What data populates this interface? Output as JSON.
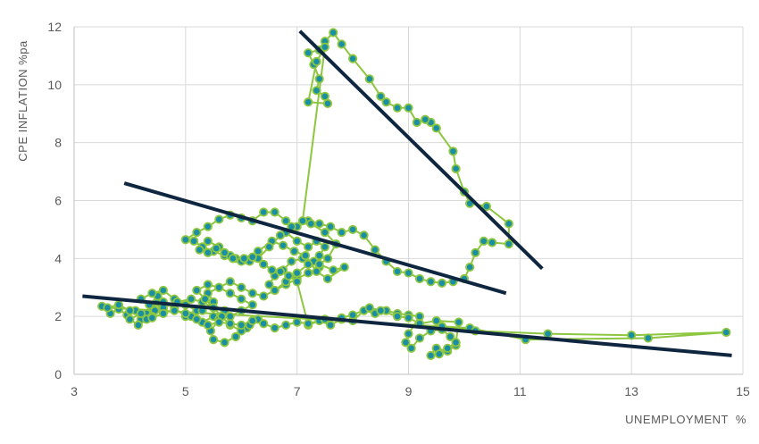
{
  "chart_data": {
    "type": "scatter",
    "title": "",
    "xlabel": "UNEMPLOYMENT  %",
    "ylabel": "CPE INFLATION %pa",
    "xlim": [
      3,
      15
    ],
    "ylim": [
      0,
      12
    ],
    "xticks": [
      3,
      5,
      7,
      9,
      11,
      13,
      15
    ],
    "yticks": [
      0,
      2,
      4,
      6,
      8,
      10,
      12
    ],
    "grid": true,
    "legend": "none",
    "colors": {
      "line": "#8dc63f",
      "marker_fill": "#1a8fa3",
      "marker_edge": "#8dc63f",
      "trend": "#0f2640",
      "grid": "#d9d9d9",
      "axis": "#bfbfbf"
    },
    "series": [
      {
        "points": [
          [
            3.5,
            2.35
          ],
          [
            3.65,
            2.1
          ],
          [
            3.8,
            2.25
          ],
          [
            3.95,
            2.05
          ],
          [
            4.1,
            2.2
          ],
          [
            4.2,
            1.9
          ],
          [
            4.3,
            2.1
          ],
          [
            4.4,
            2.3
          ],
          [
            4.5,
            2.5
          ],
          [
            4.6,
            2.2
          ],
          [
            4.5,
            2.7
          ],
          [
            4.35,
            2.4
          ],
          [
            4.2,
            2.6
          ],
          [
            4.4,
            2.8
          ],
          [
            4.6,
            2.9
          ],
          [
            4.8,
            2.6
          ],
          [
            5.0,
            2.4
          ],
          [
            5.2,
            2.2
          ],
          [
            5.0,
            2.0
          ],
          [
            4.8,
            2.3
          ],
          [
            4.6,
            2.5
          ],
          [
            4.45,
            2.2
          ],
          [
            4.3,
            1.9
          ],
          [
            4.15,
            1.7
          ],
          [
            4.0,
            1.9
          ],
          [
            4.2,
            2.1
          ],
          [
            4.4,
            2.0
          ],
          [
            4.6,
            2.3
          ],
          [
            4.85,
            2.5
          ],
          [
            5.1,
            2.6
          ],
          [
            5.3,
            2.5
          ],
          [
            5.5,
            2.3
          ],
          [
            5.7,
            2.2
          ],
          [
            5.5,
            2.0
          ],
          [
            5.3,
            1.8
          ],
          [
            5.1,
            2.0
          ],
          [
            5.3,
            2.2
          ],
          [
            5.5,
            2.5
          ],
          [
            5.4,
            2.8
          ],
          [
            5.6,
            3.0
          ],
          [
            5.8,
            2.8
          ],
          [
            6.0,
            2.6
          ],
          [
            6.2,
            2.4
          ],
          [
            6.0,
            2.2
          ],
          [
            5.8,
            2.0
          ],
          [
            5.6,
            1.9
          ],
          [
            5.45,
            1.5
          ],
          [
            5.5,
            1.2
          ],
          [
            5.7,
            1.1
          ],
          [
            5.9,
            1.3
          ],
          [
            6.1,
            1.6
          ],
          [
            6.3,
            1.9
          ],
          [
            6.15,
            1.7
          ],
          [
            6.0,
            1.5
          ],
          [
            5.8,
            1.7
          ],
          [
            5.65,
            2.0
          ],
          [
            5.5,
            2.3
          ],
          [
            5.35,
            2.6
          ],
          [
            5.2,
            2.9
          ],
          [
            5.4,
            3.1
          ],
          [
            5.6,
            3.0
          ],
          [
            5.8,
            3.2
          ],
          [
            6.0,
            3.0
          ],
          [
            6.2,
            2.8
          ],
          [
            6.4,
            2.7
          ],
          [
            6.6,
            2.9
          ],
          [
            6.8,
            3.1
          ],
          [
            7.0,
            3.3
          ],
          [
            7.2,
            3.5
          ],
          [
            7.4,
            3.7
          ],
          [
            7.3,
            3.9
          ],
          [
            7.1,
            4.0
          ],
          [
            6.9,
            3.9
          ],
          [
            6.75,
            3.6
          ],
          [
            6.6,
            3.4
          ],
          [
            6.5,
            3.1
          ],
          [
            6.6,
            2.9
          ],
          [
            6.8,
            3.2
          ],
          [
            7.0,
            3.5
          ],
          [
            7.2,
            3.8
          ],
          [
            7.4,
            4.1
          ],
          [
            7.5,
            4.4
          ],
          [
            7.35,
            4.6
          ],
          [
            7.2,
            4.4
          ],
          [
            7.0,
            4.6
          ],
          [
            6.8,
            4.9
          ],
          [
            7.0,
            5.1
          ],
          [
            7.2,
            5.3
          ],
          [
            7.4,
            5.2
          ],
          [
            7.6,
            5.1
          ],
          [
            7.8,
            4.9
          ],
          [
            8.0,
            5.0
          ],
          [
            8.2,
            4.8
          ],
          [
            8.4,
            4.3
          ],
          [
            8.6,
            3.9
          ],
          [
            8.8,
            3.55
          ],
          [
            9.0,
            3.5
          ],
          [
            9.2,
            3.3
          ],
          [
            9.4,
            3.2
          ],
          [
            9.6,
            3.15
          ],
          [
            9.8,
            3.2
          ],
          [
            10.0,
            3.3
          ],
          [
            10.1,
            3.7
          ],
          [
            10.2,
            4.2
          ],
          [
            10.35,
            4.6
          ],
          [
            10.5,
            4.55
          ],
          [
            10.8,
            4.5
          ],
          [
            10.8,
            5.2
          ],
          [
            10.4,
            5.8
          ],
          [
            10.1,
            5.9
          ],
          [
            10.0,
            6.3
          ],
          [
            9.85,
            7.1
          ],
          [
            9.8,
            7.7
          ],
          [
            9.5,
            8.5
          ],
          [
            9.4,
            8.7
          ],
          [
            9.3,
            8.8
          ],
          [
            9.15,
            8.7
          ],
          [
            9.0,
            9.2
          ],
          [
            8.8,
            9.2
          ],
          [
            8.6,
            9.4
          ],
          [
            8.5,
            9.6
          ],
          [
            8.3,
            10.2
          ],
          [
            8.0,
            10.9
          ],
          [
            7.8,
            11.4
          ],
          [
            7.65,
            11.8
          ],
          [
            7.5,
            11.5
          ],
          [
            7.4,
            11.2
          ],
          [
            7.2,
            11.1
          ],
          [
            7.3,
            10.7
          ],
          [
            7.4,
            10.2
          ],
          [
            7.35,
            9.8
          ],
          [
            7.5,
            9.6
          ],
          [
            7.55,
            9.35
          ],
          [
            7.2,
            9.4
          ],
          [
            7.35,
            10.8
          ],
          [
            7.5,
            11.3
          ],
          [
            7.1,
            5.3
          ],
          [
            7.25,
            5.2
          ],
          [
            7.5,
            4.9
          ],
          [
            7.7,
            4.5
          ],
          [
            7.55,
            4.0
          ],
          [
            7.4,
            3.8
          ],
          [
            7.65,
            3.6
          ],
          [
            7.85,
            3.7
          ],
          [
            7.55,
            3.3
          ],
          [
            7.35,
            3.55
          ],
          [
            7.15,
            4.1
          ],
          [
            6.95,
            4.25
          ],
          [
            6.75,
            4.45
          ],
          [
            6.55,
            4.6
          ],
          [
            6.3,
            4.25
          ],
          [
            6.1,
            3.95
          ],
          [
            5.9,
            4.0
          ],
          [
            5.7,
            4.1
          ],
          [
            5.5,
            4.25
          ],
          [
            5.3,
            4.4
          ],
          [
            5.15,
            4.6
          ],
          [
            5.0,
            4.65
          ],
          [
            5.2,
            4.9
          ],
          [
            5.4,
            5.1
          ],
          [
            5.6,
            5.35
          ],
          [
            5.8,
            5.5
          ],
          [
            6.0,
            5.4
          ],
          [
            6.2,
            5.3
          ],
          [
            6.4,
            5.6
          ],
          [
            6.6,
            5.6
          ],
          [
            6.8,
            5.3
          ],
          [
            6.9,
            5.1
          ],
          [
            6.7,
            4.8
          ],
          [
            6.5,
            4.4
          ],
          [
            6.3,
            4.0
          ],
          [
            6.15,
            3.9
          ],
          [
            6.0,
            3.9
          ],
          [
            5.8,
            4.1
          ],
          [
            5.6,
            4.4
          ],
          [
            5.4,
            4.6
          ],
          [
            5.25,
            4.3
          ],
          [
            5.4,
            4.2
          ],
          [
            5.55,
            4.35
          ],
          [
            5.7,
            4.2
          ],
          [
            5.85,
            4.0
          ],
          [
            6.05,
            4.0
          ],
          [
            6.2,
            4.05
          ],
          [
            6.4,
            3.8
          ],
          [
            6.55,
            3.6
          ],
          [
            6.7,
            3.55
          ],
          [
            6.85,
            3.4
          ],
          [
            7.0,
            3.2
          ],
          [
            7.2,
            1.7
          ],
          [
            7.4,
            1.85
          ],
          [
            7.6,
            1.7
          ],
          [
            7.8,
            1.9
          ],
          [
            8.0,
            1.85
          ],
          [
            8.2,
            2.2
          ],
          [
            8.4,
            2.1
          ],
          [
            8.6,
            2.2
          ],
          [
            8.8,
            2.1
          ],
          [
            9.0,
            2.05
          ],
          [
            9.2,
            2.0
          ],
          [
            9.0,
            1.4
          ],
          [
            8.95,
            1.1
          ],
          [
            9.05,
            0.9
          ],
          [
            9.2,
            1.25
          ],
          [
            9.4,
            1.5
          ],
          [
            9.6,
            1.55
          ],
          [
            9.75,
            1.3
          ],
          [
            9.85,
            1.0
          ],
          [
            9.7,
            0.8
          ],
          [
            9.5,
            0.9
          ],
          [
            9.4,
            0.65
          ],
          [
            9.55,
            0.7
          ],
          [
            9.7,
            0.9
          ],
          [
            9.85,
            1.1
          ],
          [
            9.9,
            1.8
          ],
          [
            9.5,
            1.85
          ],
          [
            9.2,
            1.75
          ],
          [
            9.0,
            1.95
          ],
          [
            8.8,
            2.0
          ],
          [
            8.5,
            2.2
          ],
          [
            8.3,
            2.3
          ],
          [
            8.0,
            2.05
          ],
          [
            7.8,
            1.95
          ],
          [
            7.5,
            1.9
          ],
          [
            7.2,
            1.75
          ],
          [
            7.0,
            1.8
          ],
          [
            6.8,
            1.7
          ],
          [
            6.6,
            1.6
          ],
          [
            6.4,
            1.75
          ],
          [
            6.2,
            1.85
          ],
          [
            6.0,
            1.7
          ],
          [
            5.8,
            1.75
          ],
          [
            5.6,
            1.8
          ],
          [
            5.4,
            1.7
          ],
          [
            5.2,
            1.9
          ],
          [
            5.0,
            2.1
          ],
          [
            4.8,
            2.2
          ],
          [
            4.6,
            2.1
          ],
          [
            4.4,
            1.95
          ],
          [
            4.2,
            2.1
          ],
          [
            4.0,
            2.2
          ],
          [
            3.8,
            2.4
          ],
          [
            3.6,
            2.3
          ],
          [
            10.1,
            1.6
          ],
          [
            11.1,
            1.2
          ],
          [
            13.3,
            1.25
          ],
          [
            14.7,
            1.45
          ],
          [
            13.0,
            1.35
          ],
          [
            11.5,
            1.4
          ],
          [
            10.2,
            1.5
          ],
          [
            9.6,
            1.65
          ]
        ]
      }
    ],
    "trendlines": [
      {
        "x": [
          7.05,
          11.4
        ],
        "y": [
          11.85,
          3.65
        ]
      },
      {
        "x": [
          3.9,
          10.75
        ],
        "y": [
          6.6,
          2.8
        ]
      },
      {
        "x": [
          3.15,
          14.8
        ],
        "y": [
          2.7,
          0.65
        ]
      }
    ]
  }
}
